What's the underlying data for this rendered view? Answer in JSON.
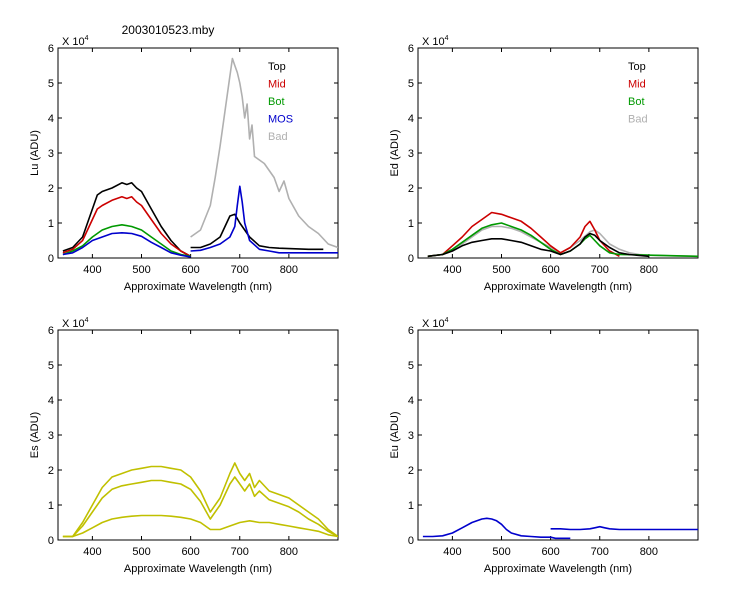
{
  "figure_title": "2003010523.mby",
  "colors": {
    "Top": "#000000",
    "Mid": "#cc0000",
    "Bot": "#009900",
    "MOS": "#0000cc",
    "Bad": "#b0b0b0",
    "Es": "#c0c000",
    "Eu": "#0000cc"
  },
  "chart_data": [
    {
      "id": "lu",
      "type": "line",
      "title": "2003010523.mby",
      "xlabel": "Approximate Wavelength (nm)",
      "ylabel": "Lu (ADU)",
      "multiplier": "X 10",
      "exponent": "4",
      "xlim": [
        330,
        900
      ],
      "ylim": [
        0,
        6
      ],
      "xticks": [
        "400",
        "500",
        "600",
        "700",
        "800"
      ],
      "yticks": [
        "0",
        "1",
        "2",
        "3",
        "4",
        "5",
        "6"
      ],
      "legend": [
        {
          "name": "Top",
          "color": "#000000"
        },
        {
          "name": "Mid",
          "color": "#cc0000"
        },
        {
          "name": "Bot",
          "color": "#009900"
        },
        {
          "name": "MOS",
          "color": "#0000cc"
        },
        {
          "name": "Bad",
          "color": "#b0b0b0"
        }
      ],
      "series": [
        {
          "name": "Bad",
          "color": "#b0b0b0",
          "x": [
            600,
            620,
            640,
            650,
            660,
            670,
            680,
            685,
            690,
            695,
            700,
            705,
            710,
            715,
            720,
            725,
            730,
            740,
            750,
            760,
            770,
            780,
            790,
            800,
            820,
            840,
            860,
            880,
            900
          ],
          "y": [
            0.6,
            0.8,
            1.5,
            2.3,
            3.2,
            4.2,
            5.2,
            5.7,
            5.5,
            5.3,
            5.0,
            4.6,
            4.0,
            4.4,
            3.4,
            3.8,
            2.9,
            2.8,
            2.7,
            2.5,
            2.3,
            1.9,
            2.2,
            1.7,
            1.2,
            0.9,
            0.7,
            0.4,
            0.3
          ]
        },
        {
          "name": "Top",
          "color": "#000000",
          "x": [
            340,
            360,
            380,
            390,
            400,
            410,
            420,
            440,
            460,
            470,
            480,
            490,
            500,
            520,
            540,
            560,
            580,
            600
          ],
          "y": [
            0.2,
            0.3,
            0.6,
            1.0,
            1.4,
            1.8,
            1.9,
            2.0,
            2.15,
            2.1,
            2.15,
            2.0,
            1.9,
            1.4,
            0.9,
            0.5,
            0.2,
            0.05
          ]
        },
        {
          "name": "Mid",
          "color": "#cc0000",
          "x": [
            340,
            360,
            380,
            390,
            400,
            410,
            420,
            440,
            460,
            470,
            480,
            490,
            500,
            520,
            540,
            560,
            580,
            600
          ],
          "y": [
            0.15,
            0.25,
            0.5,
            0.8,
            1.1,
            1.4,
            1.5,
            1.65,
            1.75,
            1.7,
            1.75,
            1.6,
            1.5,
            1.1,
            0.7,
            0.4,
            0.2,
            0.05
          ]
        },
        {
          "name": "Bot",
          "color": "#009900",
          "x": [
            340,
            360,
            380,
            400,
            420,
            440,
            460,
            480,
            500,
            520,
            540,
            560,
            580,
            600
          ],
          "y": [
            0.1,
            0.2,
            0.35,
            0.6,
            0.8,
            0.9,
            0.95,
            0.9,
            0.8,
            0.6,
            0.4,
            0.2,
            0.1,
            0.05
          ]
        },
        {
          "name": "MOS",
          "color": "#0000cc",
          "x": [
            340,
            360,
            380,
            400,
            420,
            440,
            460,
            480,
            500,
            520,
            540,
            560,
            580,
            600
          ],
          "y": [
            0.1,
            0.15,
            0.3,
            0.5,
            0.6,
            0.7,
            0.72,
            0.7,
            0.62,
            0.45,
            0.3,
            0.15,
            0.08,
            0.03
          ]
        },
        {
          "name": "Top",
          "color": "#000000",
          "x": [
            600,
            620,
            640,
            660,
            670,
            680,
            690,
            700,
            710,
            720,
            740,
            760,
            780,
            800,
            840,
            870
          ],
          "y": [
            0.3,
            0.3,
            0.4,
            0.6,
            0.9,
            1.2,
            1.25,
            1.0,
            0.8,
            0.6,
            0.35,
            0.3,
            0.28,
            0.27,
            0.25,
            0.25
          ]
        },
        {
          "name": "MOS",
          "color": "#0000cc",
          "x": [
            600,
            620,
            640,
            660,
            670,
            680,
            690,
            695,
            700,
            705,
            710,
            720,
            740,
            760,
            780,
            800,
            840,
            900
          ],
          "y": [
            0.2,
            0.22,
            0.3,
            0.4,
            0.5,
            0.6,
            0.9,
            1.5,
            2.05,
            1.6,
            1.0,
            0.5,
            0.25,
            0.2,
            0.15,
            0.15,
            0.15,
            0.15
          ]
        }
      ]
    },
    {
      "id": "ed",
      "type": "line",
      "title": "",
      "xlabel": "Approximate Wavelength (nm)",
      "ylabel": "Ed (ADU)",
      "multiplier": "X 10",
      "exponent": "4",
      "xlim": [
        330,
        900
      ],
      "ylim": [
        0,
        6
      ],
      "xticks": [
        "400",
        "500",
        "600",
        "700",
        "800"
      ],
      "yticks": [
        "0",
        "1",
        "2",
        "3",
        "4",
        "5",
        "6"
      ],
      "legend": [
        {
          "name": "Top",
          "color": "#000000"
        },
        {
          "name": "Mid",
          "color": "#cc0000"
        },
        {
          "name": "Bot",
          "color": "#009900"
        },
        {
          "name": "Bad",
          "color": "#b0b0b0"
        }
      ],
      "series": [
        {
          "name": "Bad",
          "color": "#b0b0b0",
          "x": [
            350,
            380,
            400,
            420,
            440,
            460,
            480,
            500,
            520,
            540,
            560,
            580,
            600,
            620,
            640,
            660,
            680,
            690,
            700,
            720,
            740,
            760,
            780,
            800,
            850,
            900
          ],
          "y": [
            0.05,
            0.1,
            0.2,
            0.4,
            0.6,
            0.8,
            0.9,
            0.9,
            0.85,
            0.75,
            0.6,
            0.45,
            0.3,
            0.15,
            0.3,
            0.5,
            0.75,
            0.8,
            0.7,
            0.4,
            0.25,
            0.15,
            0.1,
            0.08,
            0.06,
            0.05
          ]
        },
        {
          "name": "Mid",
          "color": "#cc0000",
          "x": [
            350,
            380,
            400,
            420,
            440,
            460,
            480,
            500,
            520,
            540,
            560,
            580,
            600,
            620,
            640,
            660,
            670,
            680,
            690,
            700,
            720,
            740
          ],
          "y": [
            0.05,
            0.1,
            0.35,
            0.6,
            0.9,
            1.1,
            1.3,
            1.25,
            1.15,
            1.05,
            0.85,
            0.6,
            0.35,
            0.15,
            0.3,
            0.6,
            0.9,
            1.05,
            0.8,
            0.5,
            0.2,
            0.05
          ]
        },
        {
          "name": "Bot",
          "color": "#009900",
          "x": [
            350,
            380,
            400,
            420,
            440,
            460,
            480,
            500,
            520,
            540,
            560,
            580,
            600,
            620,
            640,
            660,
            670,
            680,
            690,
            700,
            720,
            740,
            900
          ],
          "y": [
            0.05,
            0.1,
            0.25,
            0.45,
            0.65,
            0.85,
            0.95,
            1.0,
            0.9,
            0.8,
            0.65,
            0.45,
            0.25,
            0.1,
            0.2,
            0.4,
            0.55,
            0.65,
            0.5,
            0.35,
            0.15,
            0.1,
            0.05
          ]
        },
        {
          "name": "Top",
          "color": "#000000",
          "x": [
            350,
            380,
            400,
            420,
            440,
            460,
            480,
            500,
            520,
            540,
            560,
            580,
            600,
            620,
            640,
            660,
            670,
            680,
            690,
            700,
            720,
            740,
            760,
            800
          ],
          "y": [
            0.05,
            0.1,
            0.2,
            0.35,
            0.45,
            0.5,
            0.55,
            0.55,
            0.5,
            0.45,
            0.35,
            0.25,
            0.2,
            0.1,
            0.2,
            0.4,
            0.6,
            0.7,
            0.65,
            0.5,
            0.3,
            0.15,
            0.1,
            0.05
          ]
        }
      ]
    },
    {
      "id": "es",
      "type": "line",
      "title": "",
      "xlabel": "Approximate Wavelength (nm)",
      "ylabel": "Es (ADU)",
      "multiplier": "X 10",
      "exponent": "4",
      "xlim": [
        330,
        900
      ],
      "ylim": [
        0,
        6
      ],
      "xticks": [
        "400",
        "500",
        "600",
        "700",
        "800"
      ],
      "yticks": [
        "0",
        "1",
        "2",
        "3",
        "4",
        "5",
        "6"
      ],
      "legend": [],
      "series": [
        {
          "name": "Es",
          "color": "#c0c000",
          "x": [
            340,
            360,
            380,
            400,
            420,
            440,
            460,
            480,
            500,
            520,
            540,
            560,
            580,
            600,
            620,
            640,
            660,
            680,
            690,
            700,
            710,
            720,
            730,
            740,
            760,
            780,
            800,
            820,
            840,
            860,
            880,
            900
          ],
          "y": [
            0.1,
            0.1,
            0.5,
            1.0,
            1.5,
            1.8,
            1.9,
            2.0,
            2.05,
            2.1,
            2.1,
            2.05,
            2.0,
            1.8,
            1.4,
            0.8,
            1.2,
            1.9,
            2.2,
            1.9,
            1.7,
            1.9,
            1.5,
            1.7,
            1.4,
            1.3,
            1.2,
            1.0,
            0.8,
            0.6,
            0.3,
            0.1
          ]
        },
        {
          "name": "Es",
          "color": "#c0c000",
          "x": [
            340,
            360,
            380,
            400,
            420,
            440,
            460,
            480,
            500,
            520,
            540,
            560,
            580,
            600,
            620,
            640,
            660,
            680,
            690,
            700,
            710,
            720,
            730,
            740,
            760,
            780,
            800,
            820,
            840,
            860,
            880,
            900
          ],
          "y": [
            0.1,
            0.1,
            0.4,
            0.8,
            1.2,
            1.45,
            1.55,
            1.6,
            1.65,
            1.7,
            1.7,
            1.65,
            1.6,
            1.45,
            1.1,
            0.6,
            1.0,
            1.6,
            1.8,
            1.6,
            1.4,
            1.6,
            1.25,
            1.4,
            1.15,
            1.05,
            0.95,
            0.8,
            0.6,
            0.45,
            0.25,
            0.1
          ]
        },
        {
          "name": "Es",
          "color": "#c0c000",
          "x": [
            340,
            360,
            380,
            400,
            420,
            440,
            460,
            480,
            500,
            520,
            540,
            560,
            580,
            600,
            620,
            640,
            660,
            680,
            700,
            720,
            740,
            760,
            780,
            800,
            820,
            840,
            860,
            880,
            900
          ],
          "y": [
            0.1,
            0.1,
            0.2,
            0.35,
            0.5,
            0.6,
            0.65,
            0.68,
            0.7,
            0.7,
            0.7,
            0.68,
            0.65,
            0.6,
            0.5,
            0.3,
            0.3,
            0.4,
            0.5,
            0.55,
            0.5,
            0.5,
            0.45,
            0.4,
            0.35,
            0.3,
            0.25,
            0.15,
            0.1
          ]
        }
      ]
    },
    {
      "id": "eu",
      "type": "line",
      "title": "",
      "xlabel": "Approximate Wavelength (nm)",
      "ylabel": "Eu (ADU)",
      "multiplier": "X 10",
      "exponent": "4",
      "xlim": [
        330,
        900
      ],
      "ylim": [
        0,
        6
      ],
      "xticks": [
        "400",
        "500",
        "600",
        "700",
        "800"
      ],
      "yticks": [
        "0",
        "1",
        "2",
        "3",
        "4",
        "5",
        "6"
      ],
      "legend": [],
      "series": [
        {
          "name": "Eu",
          "color": "#0000cc",
          "x": [
            340,
            360,
            380,
            400,
            420,
            440,
            460,
            470,
            480,
            490,
            500,
            510,
            520,
            540,
            560,
            580,
            600,
            610,
            620,
            640
          ],
          "y": [
            0.1,
            0.1,
            0.12,
            0.2,
            0.35,
            0.5,
            0.6,
            0.62,
            0.6,
            0.55,
            0.45,
            0.3,
            0.2,
            0.12,
            0.1,
            0.08,
            0.08,
            0.05,
            0.05,
            0.05
          ]
        },
        {
          "name": "Eu",
          "color": "#0000cc",
          "x": [
            600,
            620,
            640,
            660,
            680,
            690,
            700,
            710,
            720,
            740,
            760,
            780,
            800,
            820,
            840,
            860,
            880,
            900
          ],
          "y": [
            0.32,
            0.32,
            0.3,
            0.3,
            0.32,
            0.35,
            0.38,
            0.35,
            0.32,
            0.3,
            0.3,
            0.3,
            0.3,
            0.3,
            0.3,
            0.3,
            0.3,
            0.3
          ]
        }
      ]
    }
  ]
}
